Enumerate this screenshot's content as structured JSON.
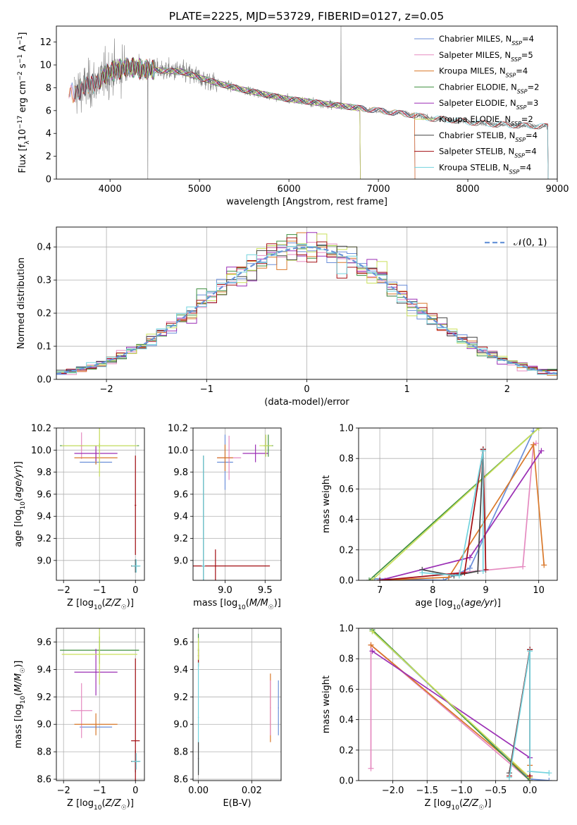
{
  "title": "PLATE=2225, MJD=53729, FIBERID=0127, z=0.05",
  "colors": {
    "Chabrier MILES": "#6b8fd9",
    "Salpeter MILES": "#e58ac0",
    "Kroupa MILES": "#d9782a",
    "Chabrier ELODIE": "#3f8f3f",
    "Salpeter ELODIE": "#9b2fb5",
    "Kroupa ELODIE": "#c9e05a",
    "Chabrier STELIB": "#444444",
    "Salpeter STELIB": "#a30e12",
    "Kroupa STELIB": "#72d3de",
    "data": "#808080",
    "normal": "#6a95d8",
    "grid": "#b0b0b0"
  },
  "chart_data": [
    {
      "id": "spectrum",
      "type": "line",
      "xlabel": "wavelength [Angstrom, rest frame]",
      "ylabel": "Flux [f_λ10^-17 erg cm^-2 s^-1 A^-1]",
      "xlim": [
        3400,
        9000
      ],
      "ylim": [
        0,
        13.4
      ],
      "xticks": [
        4000,
        5000,
        6000,
        7000,
        8000,
        9000
      ],
      "yticks": [
        0,
        2,
        4,
        6,
        8,
        10,
        12
      ],
      "legend_position": "upper right",
      "legend": [
        {
          "model": "Chabrier MILES",
          "label": "Chabrier MILES, N",
          "sub": "SSP",
          "tail": "=4"
        },
        {
          "model": "Salpeter MILES",
          "label": "Salpeter MILES, N",
          "sub": "SSP",
          "tail": "=5"
        },
        {
          "model": "Kroupa MILES",
          "label": "Kroupa MILES, N",
          "sub": "SSP",
          "tail": "=4"
        },
        {
          "model": "Chabrier ELODIE",
          "label": "Chabrier ELODIE, N",
          "sub": "SSP",
          "tail": "=2"
        },
        {
          "model": "Salpeter ELODIE",
          "label": "Salpeter ELODIE, N",
          "sub": "SSP",
          "tail": "=3"
        },
        {
          "model": "Kroupa ELODIE",
          "label": "Kroupa ELODIE, N",
          "sub": "SSP",
          "tail": "=2"
        },
        {
          "model": "Chabrier STELIB",
          "label": "Chabrier STELIB, N",
          "sub": "SSP",
          "tail": "=4"
        },
        {
          "model": "Salpeter STELIB",
          "label": "Salpeter STELIB, N",
          "sub": "SSP",
          "tail": "=4"
        },
        {
          "model": "Kroupa STELIB",
          "label": "Kroupa STELIB, N",
          "sub": "SSP",
          "tail": "=4"
        }
      ],
      "continuum": [
        [
          3600,
          7.6
        ],
        [
          3800,
          8.3
        ],
        [
          4000,
          9.4
        ],
        [
          4200,
          9.8
        ],
        [
          4400,
          9.6
        ],
        [
          4600,
          9.5
        ],
        [
          4800,
          9.4
        ],
        [
          5000,
          8.9
        ],
        [
          5200,
          8.4
        ],
        [
          5500,
          7.8
        ],
        [
          5800,
          7.3
        ],
        [
          6000,
          7.0
        ],
        [
          6300,
          6.7
        ],
        [
          6600,
          6.4
        ],
        [
          6800,
          6.2
        ],
        [
          7000,
          6.0
        ],
        [
          7200,
          5.8
        ],
        [
          7400,
          5.6
        ],
        [
          7600,
          5.3
        ],
        [
          7800,
          5.2
        ],
        [
          8000,
          5.0
        ],
        [
          8300,
          4.8
        ],
        [
          8600,
          4.7
        ],
        [
          8900,
          4.6
        ]
      ],
      "model_coverage": {
        "MILES": [
          3540,
          7410
        ],
        "ELODIE": [
          3900,
          6800
        ],
        "STELIB": [
          3600,
          8900
        ]
      }
    },
    {
      "id": "residuals",
      "type": "histogram",
      "xlabel": "(data-model)/error",
      "ylabel": "Normed distribution",
      "xlim": [
        -2.5,
        2.5
      ],
      "ylim": [
        0,
        0.46
      ],
      "xticks": [
        -2,
        -1,
        0,
        1,
        2
      ],
      "yticks": [
        0.0,
        0.1,
        0.2,
        0.3,
        0.4
      ],
      "legend_position": "upper right",
      "reference_curve": "N(0,1)",
      "reference_label": "𝒩(0, 1)",
      "bins": 50
    },
    {
      "id": "age_vs_Z",
      "type": "scatter",
      "xlabel": "Z [log10(Z/Z☉)]",
      "ylabel": "age  [log10(age/yr)]",
      "xlim": [
        -2.2,
        0.25
      ],
      "ylim": [
        8.82,
        10.2
      ],
      "xticks": [
        -2,
        -1,
        0
      ],
      "yticks": [
        9.0,
        9.2,
        9.4,
        9.6,
        9.8,
        10.0,
        10.2
      ],
      "points": [
        {
          "model": "Chabrier MILES",
          "x": -1.1,
          "y": 9.89,
          "xerr": 0.45,
          "yerr": 0.02
        },
        {
          "model": "Salpeter MILES",
          "x": -1.5,
          "y": 10.04,
          "xerr": 0.05,
          "yerr": 0.12
        },
        {
          "model": "Kroupa MILES",
          "x": -1.1,
          "y": 9.93,
          "xerr": 0.6,
          "yerr": 0.06
        },
        {
          "model": "Chabrier ELODIE",
          "x": -1.0,
          "y": 10.04,
          "xerr": 1.1,
          "yerr": 0.02
        },
        {
          "model": "Salpeter ELODIE",
          "x": -1.1,
          "y": 9.97,
          "xerr": 0.6,
          "yerr": 0.07
        },
        {
          "model": "Kroupa ELODIE",
          "x": -1.0,
          "y": 10.04,
          "xerr": 1.05,
          "yerr": 0.28
        },
        {
          "model": "Chabrier STELIB",
          "x": 0.0,
          "y": 8.95,
          "xerr": 0.12,
          "yerr": 0.06
        },
        {
          "model": "Salpeter STELIB",
          "x": 0.0,
          "y": 9.5,
          "xerr": 0.02,
          "yerr": 0.45
        },
        {
          "model": "Kroupa STELIB",
          "x": 0.02,
          "y": 8.95,
          "xerr": 0.12,
          "yerr": 0.06
        }
      ]
    },
    {
      "id": "age_vs_mass",
      "type": "scatter",
      "xlabel": "mass [log10(M/M☉)]",
      "xlim": [
        8.6,
        9.7
      ],
      "ylim": [
        8.82,
        10.2
      ],
      "xticks": [
        9.0,
        9.5
      ],
      "yticks": [
        9.0,
        9.2,
        9.4,
        9.6,
        9.8,
        10.0,
        10.2
      ],
      "points": [
        {
          "model": "Chabrier MILES",
          "x": 9.0,
          "y": 9.89,
          "xerr": 0.1,
          "yerr": 0.25
        },
        {
          "model": "Salpeter MILES",
          "x": 9.05,
          "y": 9.93,
          "xerr": 0.15,
          "yerr": 0.2
        },
        {
          "model": "Kroupa MILES",
          "x": 9.0,
          "y": 9.93,
          "xerr": 0.1,
          "yerr": 0.12
        },
        {
          "model": "Chabrier ELODIE",
          "x": 9.54,
          "y": 10.04,
          "xerr": 0.06,
          "yerr": 0.1
        },
        {
          "model": "Salpeter ELODIE",
          "x": 9.38,
          "y": 9.97,
          "xerr": 0.16,
          "yerr": 0.08
        },
        {
          "model": "Kroupa ELODIE",
          "x": 9.51,
          "y": 10.04,
          "xerr": 0.08,
          "yerr": 0.1
        },
        {
          "model": "Chabrier STELIB",
          "x": 8.73,
          "y": 8.95,
          "xerr": 0.02,
          "yerr": 1.0
        },
        {
          "model": "Salpeter STELIB",
          "x": 8.88,
          "y": 8.95,
          "xerr": 0.68,
          "yerr": 0.15
        },
        {
          "model": "Kroupa STELIB",
          "x": 8.73,
          "y": 8.95,
          "xerr": 0.02,
          "yerr": 1.0
        }
      ]
    },
    {
      "id": "weight_vs_age",
      "type": "line",
      "xlabel": "age  [log10(age/yr)]",
      "ylabel": "mass weight",
      "xlim": [
        6.6,
        10.35
      ],
      "ylim": [
        0,
        1.0
      ],
      "xticks": [
        7,
        8,
        9,
        10
      ],
      "yticks": [
        0.0,
        0.2,
        0.4,
        0.6,
        0.8,
        1.0
      ],
      "series": [
        {
          "model": "Chabrier MILES",
          "x": [
            6.9,
            8.2,
            8.7,
            9.9
          ],
          "y": [
            0.01,
            0.0,
            0.08,
            0.98
          ]
        },
        {
          "model": "Salpeter MILES",
          "x": [
            7.1,
            8.5,
            9.7,
            9.9,
            9.95
          ],
          "y": [
            0.0,
            0.05,
            0.09,
            0.89,
            0.9
          ]
        },
        {
          "model": "Kroupa MILES",
          "x": [
            7.0,
            8.3,
            9.9,
            10.1
          ],
          "y": [
            0.0,
            0.02,
            0.89,
            0.1
          ]
        },
        {
          "model": "Chabrier ELODIE",
          "x": [
            6.8,
            10.0
          ],
          "y": [
            0.0,
            1.0
          ]
        },
        {
          "model": "Salpeter ELODIE",
          "x": [
            7.0,
            8.7,
            10.05
          ],
          "y": [
            0.0,
            0.15,
            0.85
          ]
        },
        {
          "model": "Kroupa ELODIE",
          "x": [
            6.85,
            10.0
          ],
          "y": [
            0.0,
            1.0
          ]
        },
        {
          "model": "Chabrier STELIB",
          "x": [
            7.8,
            8.4,
            8.85,
            8.95
          ],
          "y": [
            0.07,
            0.03,
            0.06,
            0.86
          ]
        },
        {
          "model": "Salpeter STELIB",
          "x": [
            7.0,
            8.6,
            8.95,
            9.0
          ],
          "y": [
            0.0,
            0.05,
            0.86,
            0.07
          ]
        },
        {
          "model": "Kroupa STELIB",
          "x": [
            7.8,
            8.5,
            8.95,
            8.95
          ],
          "y": [
            0.05,
            0.03,
            0.85,
            0.06
          ]
        }
      ]
    },
    {
      "id": "mass_vs_Z",
      "type": "scatter",
      "xlabel": "Z [log10(Z/Z☉)]",
      "ylabel": "mass [log10(M/M☉)]",
      "xlim": [
        -2.2,
        0.25
      ],
      "ylim": [
        8.59,
        9.7
      ],
      "xticks": [
        -2,
        -1,
        0
      ],
      "yticks": [
        8.6,
        8.8,
        9.0,
        9.2,
        9.4,
        9.6
      ],
      "points": [
        {
          "model": "Chabrier MILES",
          "x": -1.1,
          "y": 8.98,
          "xerr": 0.45,
          "yerr": 0.02
        },
        {
          "model": "Salpeter MILES",
          "x": -1.5,
          "y": 9.1,
          "xerr": 0.3,
          "yerr": 0.2
        },
        {
          "model": "Kroupa MILES",
          "x": -1.1,
          "y": 9.0,
          "xerr": 0.6,
          "yerr": 0.08
        },
        {
          "model": "Chabrier ELODIE",
          "x": -1.0,
          "y": 9.54,
          "xerr": 1.1,
          "yerr": 0.1
        },
        {
          "model": "Salpeter ELODIE",
          "x": -1.1,
          "y": 9.38,
          "xerr": 0.6,
          "yerr": 0.17
        },
        {
          "model": "Kroupa ELODIE",
          "x": -1.0,
          "y": 9.51,
          "xerr": 1.05,
          "yerr": 0.22
        },
        {
          "model": "Chabrier STELIB",
          "x": 0.0,
          "y": 8.73,
          "xerr": 0.12,
          "yerr": 0.08
        },
        {
          "model": "Salpeter STELIB",
          "x": 0.0,
          "y": 8.88,
          "xerr": 0.12,
          "yerr": 0.6
        },
        {
          "model": "Kroupa STELIB",
          "x": 0.02,
          "y": 8.73,
          "xerr": 0.12,
          "yerr": 0.06
        }
      ]
    },
    {
      "id": "mass_vs_EBV",
      "type": "scatter",
      "xlabel": "E(B-V)",
      "xlim": [
        -0.002,
        0.031
      ],
      "ylim": [
        8.59,
        9.7
      ],
      "xticks": [
        0.0,
        0.02
      ],
      "yticks": [
        8.6,
        8.8,
        9.0,
        9.2,
        9.4,
        9.6
      ],
      "points": [
        {
          "model": "Chabrier MILES",
          "x": 0.03,
          "y": 9.12,
          "yerr": 0.2
        },
        {
          "model": "Kroupa MILES",
          "x": 0.027,
          "y": 9.12,
          "yerr": 0.25
        },
        {
          "model": "Salpeter MILES",
          "x": 0.027,
          "y": 9.12,
          "yerr": 0.2
        },
        {
          "model": "Chabrier ELODIE",
          "x": 0.0,
          "y": 9.54,
          "yerr": 0.12
        },
        {
          "model": "Salpeter STELIB",
          "x": 0.0,
          "y": 9.5,
          "yerr": 0.05
        },
        {
          "model": "Kroupa ELODIE",
          "x": 0.0,
          "y": 9.55,
          "yerr": 0.08
        },
        {
          "model": "Kroupa STELIB",
          "x": 0.0,
          "y": 9.05,
          "yerr": 0.4
        },
        {
          "model": "Chabrier STELIB",
          "x": 0.0,
          "y": 8.75,
          "yerr": 0.12
        }
      ]
    },
    {
      "id": "weight_vs_Z",
      "type": "line",
      "xlabel": "Z [log10(Z/Z☉)]",
      "ylabel": "mass weight",
      "xlim": [
        -2.5,
        0.4
      ],
      "ylim": [
        0,
        1.0
      ],
      "xticks": [
        -2.0,
        -1.5,
        -1.0,
        -0.5,
        0.0
      ],
      "yticks": [
        0.0,
        0.2,
        0.4,
        0.6,
        0.8,
        1.0
      ],
      "series": [
        {
          "model": "Chabrier MILES",
          "x": [
            -2.3,
            0.0,
            0.28
          ],
          "y": [
            0.98,
            0.01,
            0.0
          ]
        },
        {
          "model": "Salpeter MILES",
          "x": [
            -2.32,
            -2.32,
            0.0
          ],
          "y": [
            0.08,
            0.89,
            0.0
          ]
        },
        {
          "model": "Kroupa MILES",
          "x": [
            -2.32,
            0.0,
            0.0
          ],
          "y": [
            0.89,
            0.02,
            0.1
          ]
        },
        {
          "model": "Chabrier ELODIE",
          "x": [
            -2.3,
            0.0
          ],
          "y": [
            0.99,
            0.0
          ]
        },
        {
          "model": "Salpeter ELODIE",
          "x": [
            -2.3,
            0.0
          ],
          "y": [
            0.85,
            0.15
          ]
        },
        {
          "model": "Kroupa ELODIE",
          "x": [
            -2.3,
            0.0
          ],
          "y": [
            0.98,
            0.02
          ]
        },
        {
          "model": "Chabrier STELIB",
          "x": [
            -0.3,
            0.0
          ],
          "y": [
            0.05,
            0.86
          ]
        },
        {
          "model": "Salpeter STELIB",
          "x": [
            -0.3,
            0.0,
            0.0
          ],
          "y": [
            0.03,
            0.86,
            0.03
          ]
        },
        {
          "model": "Kroupa STELIB",
          "x": [
            -0.3,
            0.0,
            0.0,
            0.28
          ],
          "y": [
            0.02,
            0.85,
            0.06,
            0.05
          ]
        }
      ]
    }
  ]
}
